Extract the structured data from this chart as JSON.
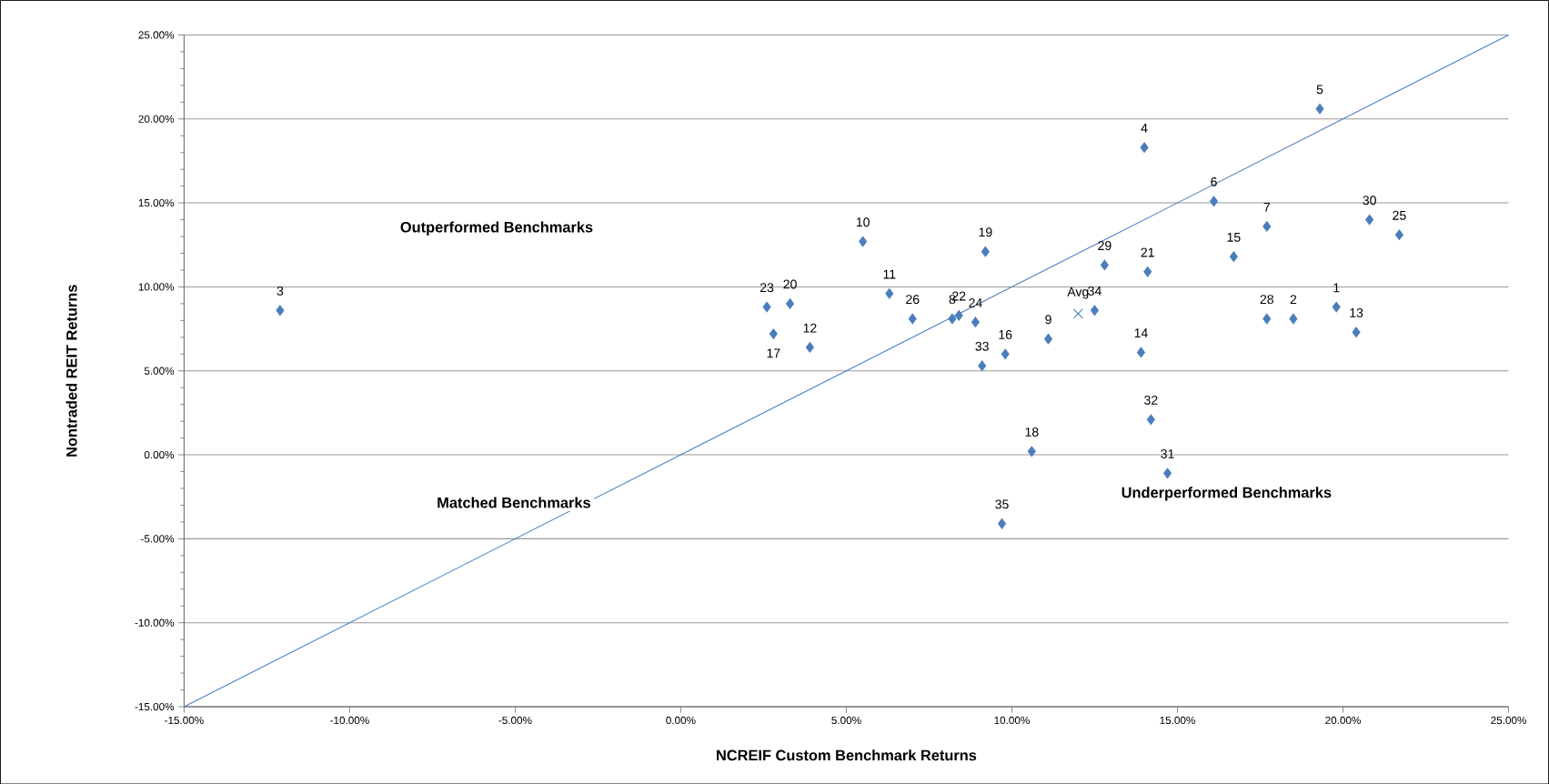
{
  "chart_data": {
    "type": "scatter",
    "xlabel": "NCREIF Custom Benchmark Returns",
    "ylabel": "Nontraded REIT Returns",
    "xlim": [
      -15,
      25
    ],
    "ylim": [
      -15,
      25
    ],
    "xticks": [
      {
        "value": -15,
        "label": "-15.00%"
      },
      {
        "value": -10,
        "label": "-10.00%"
      },
      {
        "value": -5,
        "label": "-5.00%"
      },
      {
        "value": 0,
        "label": "0.00%"
      },
      {
        "value": 5,
        "label": "5.00%"
      },
      {
        "value": 10,
        "label": "10.00%"
      },
      {
        "value": 15,
        "label": "15.00%"
      },
      {
        "value": 20,
        "label": "20.00%"
      },
      {
        "value": 25,
        "label": "25.00%"
      }
    ],
    "yticks": [
      {
        "value": -15,
        "label": "-15.00%"
      },
      {
        "value": -10,
        "label": "-10.00%"
      },
      {
        "value": -5,
        "label": "-5.00%"
      },
      {
        "value": 0,
        "label": "0.00%"
      },
      {
        "value": 5,
        "label": "5.00%"
      },
      {
        "value": 10,
        "label": "10.00%"
      },
      {
        "value": 15,
        "label": "15.00%"
      },
      {
        "value": 20,
        "label": "20.00%"
      },
      {
        "value": 25,
        "label": "25.00%"
      }
    ],
    "grid": "y",
    "series": [
      {
        "type": "line",
        "color": "#4a7ebb",
        "marker": "none",
        "line_style": "solid",
        "x": [
          -15,
          25
        ],
        "values": [
          -15,
          25
        ]
      },
      {
        "color": "#4a7ebb",
        "marker": "diamond",
        "x": [
          19.8,
          18.5,
          -12.1,
          14.0,
          19.3,
          16.1,
          17.7,
          8.2,
          11.1,
          5.5,
          6.3,
          3.9,
          20.4,
          13.9,
          16.7,
          9.8,
          2.8,
          10.6,
          9.2,
          3.3,
          14.1,
          8.4,
          2.6,
          8.9,
          21.7,
          7.0,
          17.7,
          12.8,
          20.8,
          14.7,
          14.2,
          9.1,
          12.5,
          9.7
        ],
        "values": [
          8.8,
          8.1,
          8.6,
          18.3,
          20.6,
          15.1,
          13.6,
          8.1,
          6.9,
          12.7,
          9.6,
          6.4,
          7.3,
          6.1,
          11.8,
          6.0,
          7.2,
          0.2,
          12.1,
          9.0,
          10.9,
          8.3,
          8.8,
          7.9,
          13.1,
          8.1,
          8.1,
          11.3,
          14.0,
          -1.1,
          2.1,
          5.3,
          8.6,
          -4.1
        ]
      },
      {
        "color": "#4a7ebb",
        "marker": "cross",
        "x": [
          12.0
        ],
        "values": [
          8.4
        ]
      }
    ],
    "annotations": [
      {
        "text": "1",
        "x": 19.8,
        "y": 8.8
      },
      {
        "text": "2",
        "x": 18.5,
        "y": 8.1
      },
      {
        "text": "3",
        "x": -12.1,
        "y": 8.6
      },
      {
        "text": "4",
        "x": 14.0,
        "y": 18.3
      },
      {
        "text": "5",
        "x": 19.3,
        "y": 20.6
      },
      {
        "text": "6",
        "x": 16.1,
        "y": 15.1
      },
      {
        "text": "7",
        "x": 17.7,
        "y": 13.6
      },
      {
        "text": "8",
        "x": 8.2,
        "y": 8.1
      },
      {
        "text": "9",
        "x": 11.1,
        "y": 6.9
      },
      {
        "text": "10",
        "x": 5.5,
        "y": 12.7
      },
      {
        "text": "11",
        "x": 6.3,
        "y": 9.6
      },
      {
        "text": "12",
        "x": 3.9,
        "y": 6.4
      },
      {
        "text": "13",
        "x": 20.4,
        "y": 7.3
      },
      {
        "text": "14",
        "x": 13.9,
        "y": 6.1
      },
      {
        "text": "15",
        "x": 16.7,
        "y": 11.8
      },
      {
        "text": "16",
        "x": 9.8,
        "y": 6.0
      },
      {
        "text": "17",
        "x": 2.8,
        "y": 7.2
      },
      {
        "text": "18",
        "x": 10.6,
        "y": 0.2
      },
      {
        "text": "19",
        "x": 9.2,
        "y": 12.1
      },
      {
        "text": "20",
        "x": 3.3,
        "y": 9.0
      },
      {
        "text": "21",
        "x": 14.1,
        "y": 10.9
      },
      {
        "text": "22",
        "x": 8.4,
        "y": 8.3
      },
      {
        "text": "23",
        "x": 2.6,
        "y": 8.8
      },
      {
        "text": "24",
        "x": 8.9,
        "y": 7.9
      },
      {
        "text": "25",
        "x": 21.7,
        "y": 13.1
      },
      {
        "text": "26",
        "x": 7.0,
        "y": 8.1
      },
      {
        "text": "28",
        "x": 17.7,
        "y": 8.1
      },
      {
        "text": "29",
        "x": 12.8,
        "y": 11.3
      },
      {
        "text": "30",
        "x": 20.8,
        "y": 14.0
      },
      {
        "text": "31",
        "x": 14.7,
        "y": -1.1
      },
      {
        "text": "32",
        "x": 14.2,
        "y": 2.1
      },
      {
        "text": "33",
        "x": 9.1,
        "y": 5.3
      },
      {
        "text": "34",
        "x": 12.5,
        "y": 8.6
      },
      {
        "text": "35",
        "x": 9.7,
        "y": -4.1
      },
      {
        "text": "Avg",
        "x": 12.0,
        "y": 8.4
      },
      "Outperformed Benchmarks",
      "Underperformed Benchmarks",
      "Matched Benchmarks"
    ]
  }
}
